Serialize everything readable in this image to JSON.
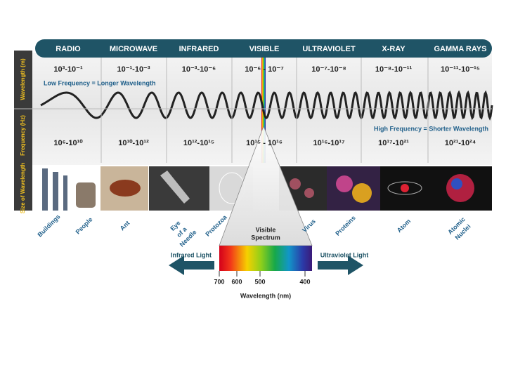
{
  "header": {
    "bands": [
      "RADIO",
      "MICROWAVE",
      "INFRARED",
      "VISIBLE",
      "ULTRAVIOLET",
      "X-RAY",
      "GAMMA RAYS"
    ]
  },
  "rows": {
    "wavelength_label": "Wavelength (m)",
    "frequency_label": "Frequency (Hz)",
    "size_label": "Size of Wavelength"
  },
  "wavelengths": [
    "10³-10⁻¹",
    "10⁻¹-10⁻³",
    "10⁻³-10⁻⁶",
    "10⁻⁶ - 10⁻⁷",
    "10⁻⁷-10⁻⁸",
    "10⁻⁸-10⁻¹¹",
    "10⁻¹¹-10⁻¹⁵"
  ],
  "frequencies": [
    "10⁶-10¹⁰",
    "10¹⁰-10¹²",
    "10¹²-10¹⁵",
    "10¹⁵ - 10¹⁶",
    "10¹⁶-10¹⁷",
    "10¹⁷-10²¹",
    "10²¹-10²⁴"
  ],
  "notes": {
    "low": "Low Frequency = Longer Wavelength",
    "high": "High Frequency = Shorter Wavelength"
  },
  "sizes": [
    {
      "lines": [
        "Buildings"
      ]
    },
    {
      "lines": [
        "People"
      ]
    },
    {
      "lines": [
        "Ant"
      ]
    },
    {
      "lines": [
        "Eye",
        "of a",
        "Needle"
      ]
    },
    {
      "lines": [
        "Protozoa"
      ]
    },
    {
      "lines": [
        "Virus"
      ]
    },
    {
      "lines": [
        "Proteins"
      ]
    },
    {
      "lines": [
        "Atom"
      ]
    },
    {
      "lines": [
        "Atomic",
        "Nuclei"
      ]
    }
  ],
  "spectrum": {
    "title": [
      "Visible",
      "Spectrum"
    ],
    "left": "Infrared Light",
    "right": "Ultraviolet Light",
    "ticks": [
      "700",
      "600",
      "500",
      "400"
    ],
    "axis_label": "Wavelength (nm)"
  }
}
